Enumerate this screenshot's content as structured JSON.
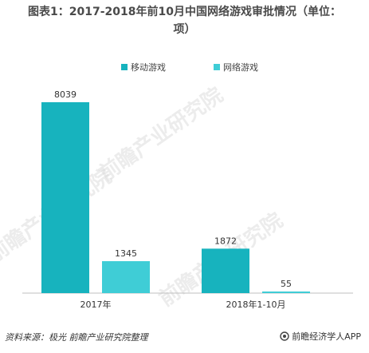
{
  "title_line1": "图表1：2017-2018年前10月中国网络游戏审批情况（单位：",
  "title_line2": "项）",
  "legend": [
    {
      "label": "移动游戏",
      "color": "#17b3be"
    },
    {
      "label": "网络游戏",
      "color": "#3fcdd6"
    }
  ],
  "watermark": "前瞻产业研究院",
  "source": "资料来源：极光 前瞻产业研究院整理",
  "brand": "前瞻经济学人APP",
  "chart_data": {
    "type": "bar",
    "title": "图表1：2017-2018年前10月中国网络游戏审批情况（单位：项）",
    "categories": [
      "2017年",
      "2018年1-10月"
    ],
    "series": [
      {
        "name": "移动游戏",
        "color": "#17b3be",
        "values": [
          8039,
          1872
        ]
      },
      {
        "name": "网络游戏",
        "color": "#3fcdd6",
        "values": [
          1345,
          55
        ]
      }
    ],
    "ylim": [
      0,
      8039
    ],
    "grid": false,
    "legend_position": "top"
  }
}
